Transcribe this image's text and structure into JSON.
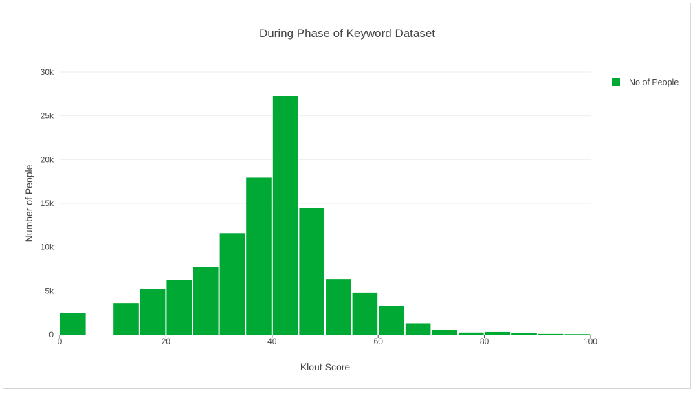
{
  "chart_data": {
    "type": "bar",
    "title": "During Phase of Keyword Dataset",
    "xlabel": "Klout Score",
    "ylabel": "Number of People",
    "xlim": [
      0,
      100
    ],
    "ylim": [
      0,
      30000
    ],
    "x_ticks": [
      0,
      20,
      40,
      60,
      80,
      100
    ],
    "x_tick_labels": [
      "0",
      "20",
      "40",
      "60",
      "80",
      "100"
    ],
    "y_ticks": [
      0,
      5000,
      10000,
      15000,
      20000,
      25000,
      30000
    ],
    "y_tick_labels": [
      "0",
      "5k",
      "10k",
      "15k",
      "20k",
      "25k",
      "30k"
    ],
    "bin_width": 5,
    "grid": true,
    "legend_position": "top-right",
    "series": [
      {
        "name": "No of People",
        "color": "#00a933",
        "bins": [
          {
            "x0": 0,
            "x1": 5,
            "value": 2500
          },
          {
            "x0": 5,
            "x1": 10,
            "value": 0
          },
          {
            "x0": 10,
            "x1": 15,
            "value": 3600
          },
          {
            "x0": 15,
            "x1": 20,
            "value": 5200
          },
          {
            "x0": 20,
            "x1": 25,
            "value": 6250
          },
          {
            "x0": 25,
            "x1": 30,
            "value": 7750
          },
          {
            "x0": 30,
            "x1": 35,
            "value": 11600
          },
          {
            "x0": 35,
            "x1": 40,
            "value": 17950
          },
          {
            "x0": 40,
            "x1": 45,
            "value": 27250
          },
          {
            "x0": 45,
            "x1": 50,
            "value": 14450
          },
          {
            "x0": 50,
            "x1": 55,
            "value": 6350
          },
          {
            "x0": 55,
            "x1": 60,
            "value": 4800
          },
          {
            "x0": 60,
            "x1": 65,
            "value": 3250
          },
          {
            "x0": 65,
            "x1": 70,
            "value": 1300
          },
          {
            "x0": 70,
            "x1": 75,
            "value": 500
          },
          {
            "x0": 75,
            "x1": 80,
            "value": 250
          },
          {
            "x0": 80,
            "x1": 85,
            "value": 320
          },
          {
            "x0": 85,
            "x1": 90,
            "value": 170
          },
          {
            "x0": 90,
            "x1": 95,
            "value": 90
          },
          {
            "x0": 95,
            "x1": 100,
            "value": 60
          }
        ]
      }
    ]
  }
}
